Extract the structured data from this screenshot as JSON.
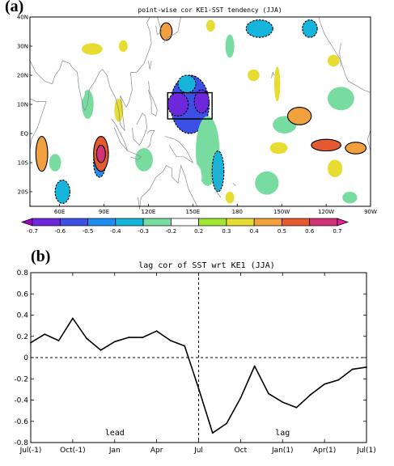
{
  "panel_a": {
    "label": "(a)",
    "title": "point-wise cor KE1-SST tendency (JJA)",
    "lat_ticks": [
      "40N",
      "30N",
      "20N",
      "10N",
      "EQ",
      "10S",
      "20S"
    ],
    "lon_ticks": [
      "60E",
      "90E",
      "120E",
      "150E",
      "180",
      "150W",
      "120W",
      "90W"
    ],
    "colorbar": {
      "labels": [
        "-0.7",
        "-0.6",
        "-0.5",
        "-0.4",
        "-0.3",
        "-0.2",
        "0.2",
        "0.3",
        "0.4",
        "0.5",
        "0.6",
        "0.7"
      ],
      "colors": [
        "#a000c8",
        "#6e28dc",
        "#3c50e6",
        "#1e8cf0",
        "#14b4dc",
        "#78dca0",
        "#ffffff",
        "#a0e632",
        "#e6dc32",
        "#f0a03c",
        "#e65a32",
        "#d23278",
        "#e61ea0"
      ]
    }
  },
  "panel_b": {
    "label": "(b)",
    "title": "lag cor of SST wrt KE1 (JJA)",
    "annotations": [
      "lead",
      "lag"
    ]
  },
  "chart_data": [
    {
      "type": "heatmap",
      "title": "point-wise cor KE1-SST tendency (JJA)",
      "x_ticks": [
        "60E",
        "90E",
        "120E",
        "150E",
        "180",
        "150W",
        "120W",
        "90W"
      ],
      "y_ticks": [
        "40N",
        "30N",
        "20N",
        "10N",
        "EQ",
        "10S",
        "20S"
      ],
      "xlim": [
        40,
        270
      ],
      "ylim": [
        -25,
        40
      ],
      "colorbar_levels": [
        -0.7,
        -0.6,
        -0.5,
        -0.4,
        -0.3,
        -0.2,
        0.2,
        0.3,
        0.4,
        0.5,
        0.6,
        0.7
      ],
      "box_region": {
        "lon": [
          133,
          163
        ],
        "lat": [
          5,
          14
        ]
      },
      "features": [
        {
          "lon": 148,
          "lat": 10,
          "rx": 13,
          "ry": 10,
          "value": -0.6
        },
        {
          "lon": 140,
          "lat": 10,
          "rx": 7,
          "ry": 4,
          "value": -0.7
        },
        {
          "lon": 156,
          "lat": 11,
          "rx": 5,
          "ry": 4,
          "value": -0.7
        },
        {
          "lon": 146,
          "lat": 17,
          "rx": 6,
          "ry": 3,
          "value": -0.4
        },
        {
          "lon": 160,
          "lat": -6,
          "rx": 8,
          "ry": 12,
          "value": -0.3
        },
        {
          "lon": 167,
          "lat": -13,
          "rx": 4,
          "ry": 7,
          "value": -0.4
        },
        {
          "lon": 150,
          "lat": -15,
          "rx": 6,
          "ry": 5,
          "value": -0.2
        },
        {
          "lon": 87,
          "lat": -10,
          "rx": 4,
          "ry": 5,
          "value": -0.5
        },
        {
          "lon": 62,
          "lat": -20,
          "rx": 5,
          "ry": 4,
          "value": -0.4
        },
        {
          "lon": 57,
          "lat": -10,
          "rx": 4,
          "ry": 3,
          "value": -0.3
        },
        {
          "lon": 79,
          "lat": 10,
          "rx": 4,
          "ry": 5,
          "value": -0.3
        },
        {
          "lon": 72,
          "lat": 14,
          "rx": 5,
          "ry": 3,
          "value": -0.2
        },
        {
          "lon": 110,
          "lat": 14,
          "rx": 5,
          "ry": 4,
          "value": -0.2
        },
        {
          "lon": 117,
          "lat": -9,
          "rx": 6,
          "ry": 4,
          "value": -0.3
        },
        {
          "lon": 195,
          "lat": 36,
          "rx": 9,
          "ry": 3,
          "value": -0.4
        },
        {
          "lon": 229,
          "lat": 36,
          "rx": 5,
          "ry": 3,
          "value": -0.4
        },
        {
          "lon": 212,
          "lat": 3,
          "rx": 8,
          "ry": 3,
          "value": -0.3
        },
        {
          "lon": 250,
          "lat": 12,
          "rx": 9,
          "ry": 4,
          "value": -0.3
        },
        {
          "lon": 200,
          "lat": -17,
          "rx": 8,
          "ry": 4,
          "value": -0.3
        },
        {
          "lon": 256,
          "lat": -22,
          "rx": 5,
          "ry": 2,
          "value": -0.3
        },
        {
          "lon": 175,
          "lat": 30,
          "rx": 3,
          "ry": 4,
          "value": -0.3
        },
        {
          "lon": 232,
          "lat": -16,
          "rx": 4,
          "ry": 3,
          "value": -0.2
        },
        {
          "lon": 88,
          "lat": -7,
          "rx": 5,
          "ry": 6,
          "value": 0.5
        },
        {
          "lon": 88,
          "lat": -7,
          "rx": 3,
          "ry": 3,
          "value": 0.6
        },
        {
          "lon": 48,
          "lat": -7,
          "rx": 4,
          "ry": 6,
          "value": 0.4
        },
        {
          "lon": 132,
          "lat": 35,
          "rx": 4,
          "ry": 3,
          "value": 0.4
        },
        {
          "lon": 162,
          "lat": 37,
          "rx": 3,
          "ry": 2,
          "value": 0.3
        },
        {
          "lon": 222,
          "lat": 6,
          "rx": 8,
          "ry": 3,
          "value": 0.4
        },
        {
          "lon": 207,
          "lat": 17,
          "rx": 2,
          "ry": 6,
          "value": 0.3
        },
        {
          "lon": 240,
          "lat": -4,
          "rx": 10,
          "ry": 2,
          "value": 0.5
        },
        {
          "lon": 260,
          "lat": -5,
          "rx": 7,
          "ry": 2,
          "value": 0.4
        },
        {
          "lon": 208,
          "lat": -5,
          "rx": 6,
          "ry": 2,
          "value": 0.3
        },
        {
          "lon": 246,
          "lat": -12,
          "rx": 5,
          "ry": 3,
          "value": 0.3
        },
        {
          "lon": 82,
          "lat": 29,
          "rx": 7,
          "ry": 2,
          "value": 0.3
        },
        {
          "lon": 103,
          "lat": 30,
          "rx": 3,
          "ry": 2,
          "value": 0.3
        },
        {
          "lon": 100,
          "lat": 8,
          "rx": 3,
          "ry": 4,
          "value": 0.3
        },
        {
          "lon": 175,
          "lat": -22,
          "rx": 3,
          "ry": 2,
          "value": 0.3
        },
        {
          "lon": 191,
          "lat": 20,
          "rx": 4,
          "ry": 2,
          "value": 0.3
        },
        {
          "lon": 245,
          "lat": 25,
          "rx": 4,
          "ry": 2,
          "value": 0.3
        }
      ]
    },
    {
      "type": "line",
      "title": "lag cor of SST wrt KE1 (JJA)",
      "x_tick_labels": [
        "Jul(-1)",
        "Oct(-1)",
        "Jan",
        "Apr",
        "Jul",
        "Oct",
        "Jan(1)",
        "Apr(1)",
        "Jul(1)"
      ],
      "x_tick_positions": [
        0,
        3,
        6,
        9,
        12,
        15,
        18,
        21,
        24
      ],
      "y_ticks": [
        -0.8,
        -0.6,
        -0.4,
        -0.2,
        0,
        0.2,
        0.4,
        0.6,
        0.8
      ],
      "xlim": [
        0,
        24
      ],
      "ylim": [
        -0.8,
        0.8
      ],
      "x": [
        0,
        1,
        2,
        3,
        4,
        5,
        6,
        7,
        8,
        9,
        10,
        11,
        12,
        13,
        14,
        15,
        16,
        17,
        18,
        19,
        20,
        21,
        22,
        23,
        24
      ],
      "values": [
        0.14,
        0.22,
        0.16,
        0.37,
        0.18,
        0.07,
        0.15,
        0.19,
        0.19,
        0.25,
        0.16,
        0.11,
        -0.29,
        -0.71,
        -0.62,
        -0.38,
        -0.08,
        -0.34,
        -0.42,
        -0.47,
        -0.35,
        -0.25,
        -0.21,
        -0.11,
        -0.09
      ],
      "zero_line": true,
      "vertical_line_at": 12,
      "annotations": [
        {
          "text": "lead",
          "x": 6,
          "y": -0.7
        },
        {
          "text": "lag",
          "x": 18,
          "y": -0.7
        }
      ]
    }
  ]
}
